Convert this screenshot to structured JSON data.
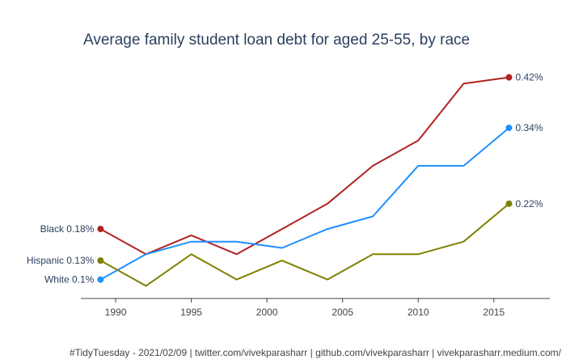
{
  "chart_data": {
    "type": "line",
    "title": "Average family student loan debt for aged 25-55, by race",
    "xlabel": "",
    "ylabel": "",
    "x": [
      1989,
      1992,
      1995,
      1998,
      2001,
      2004,
      2007,
      2010,
      2013,
      2016
    ],
    "x_ticks": [
      1990,
      1995,
      2000,
      2005,
      2010,
      2015
    ],
    "xlim": [
      1987.7,
      2018.7
    ],
    "ylim": [
      0.07,
      0.44
    ],
    "grid": false,
    "series": [
      {
        "name": "Black",
        "color": "#b22222",
        "values": [
          0.18,
          0.14,
          0.17,
          0.14,
          0.18,
          0.22,
          0.28,
          0.32,
          0.41,
          0.42
        ],
        "start_label": "Black 0.18%",
        "end_label": "0.42%"
      },
      {
        "name": "White",
        "color": "#1e90ff",
        "values": [
          0.1,
          0.14,
          0.16,
          0.16,
          0.15,
          0.18,
          0.2,
          0.28,
          0.28,
          0.34
        ],
        "start_label": "White 0.1%",
        "end_label": "0.34%"
      },
      {
        "name": "Hispanic",
        "color": "#808000",
        "values": [
          0.13,
          0.09,
          0.14,
          0.1,
          0.13,
          0.1,
          0.14,
          0.14,
          0.16,
          0.22
        ],
        "start_label": "Hispanic 0.13%",
        "end_label": "0.22%"
      }
    ],
    "caption": "#TidyTuesday - 2021/02/09 | twitter.com/vivekparasharr | github.com/vivekparasharr | vivekparasharr.medium.com/"
  }
}
